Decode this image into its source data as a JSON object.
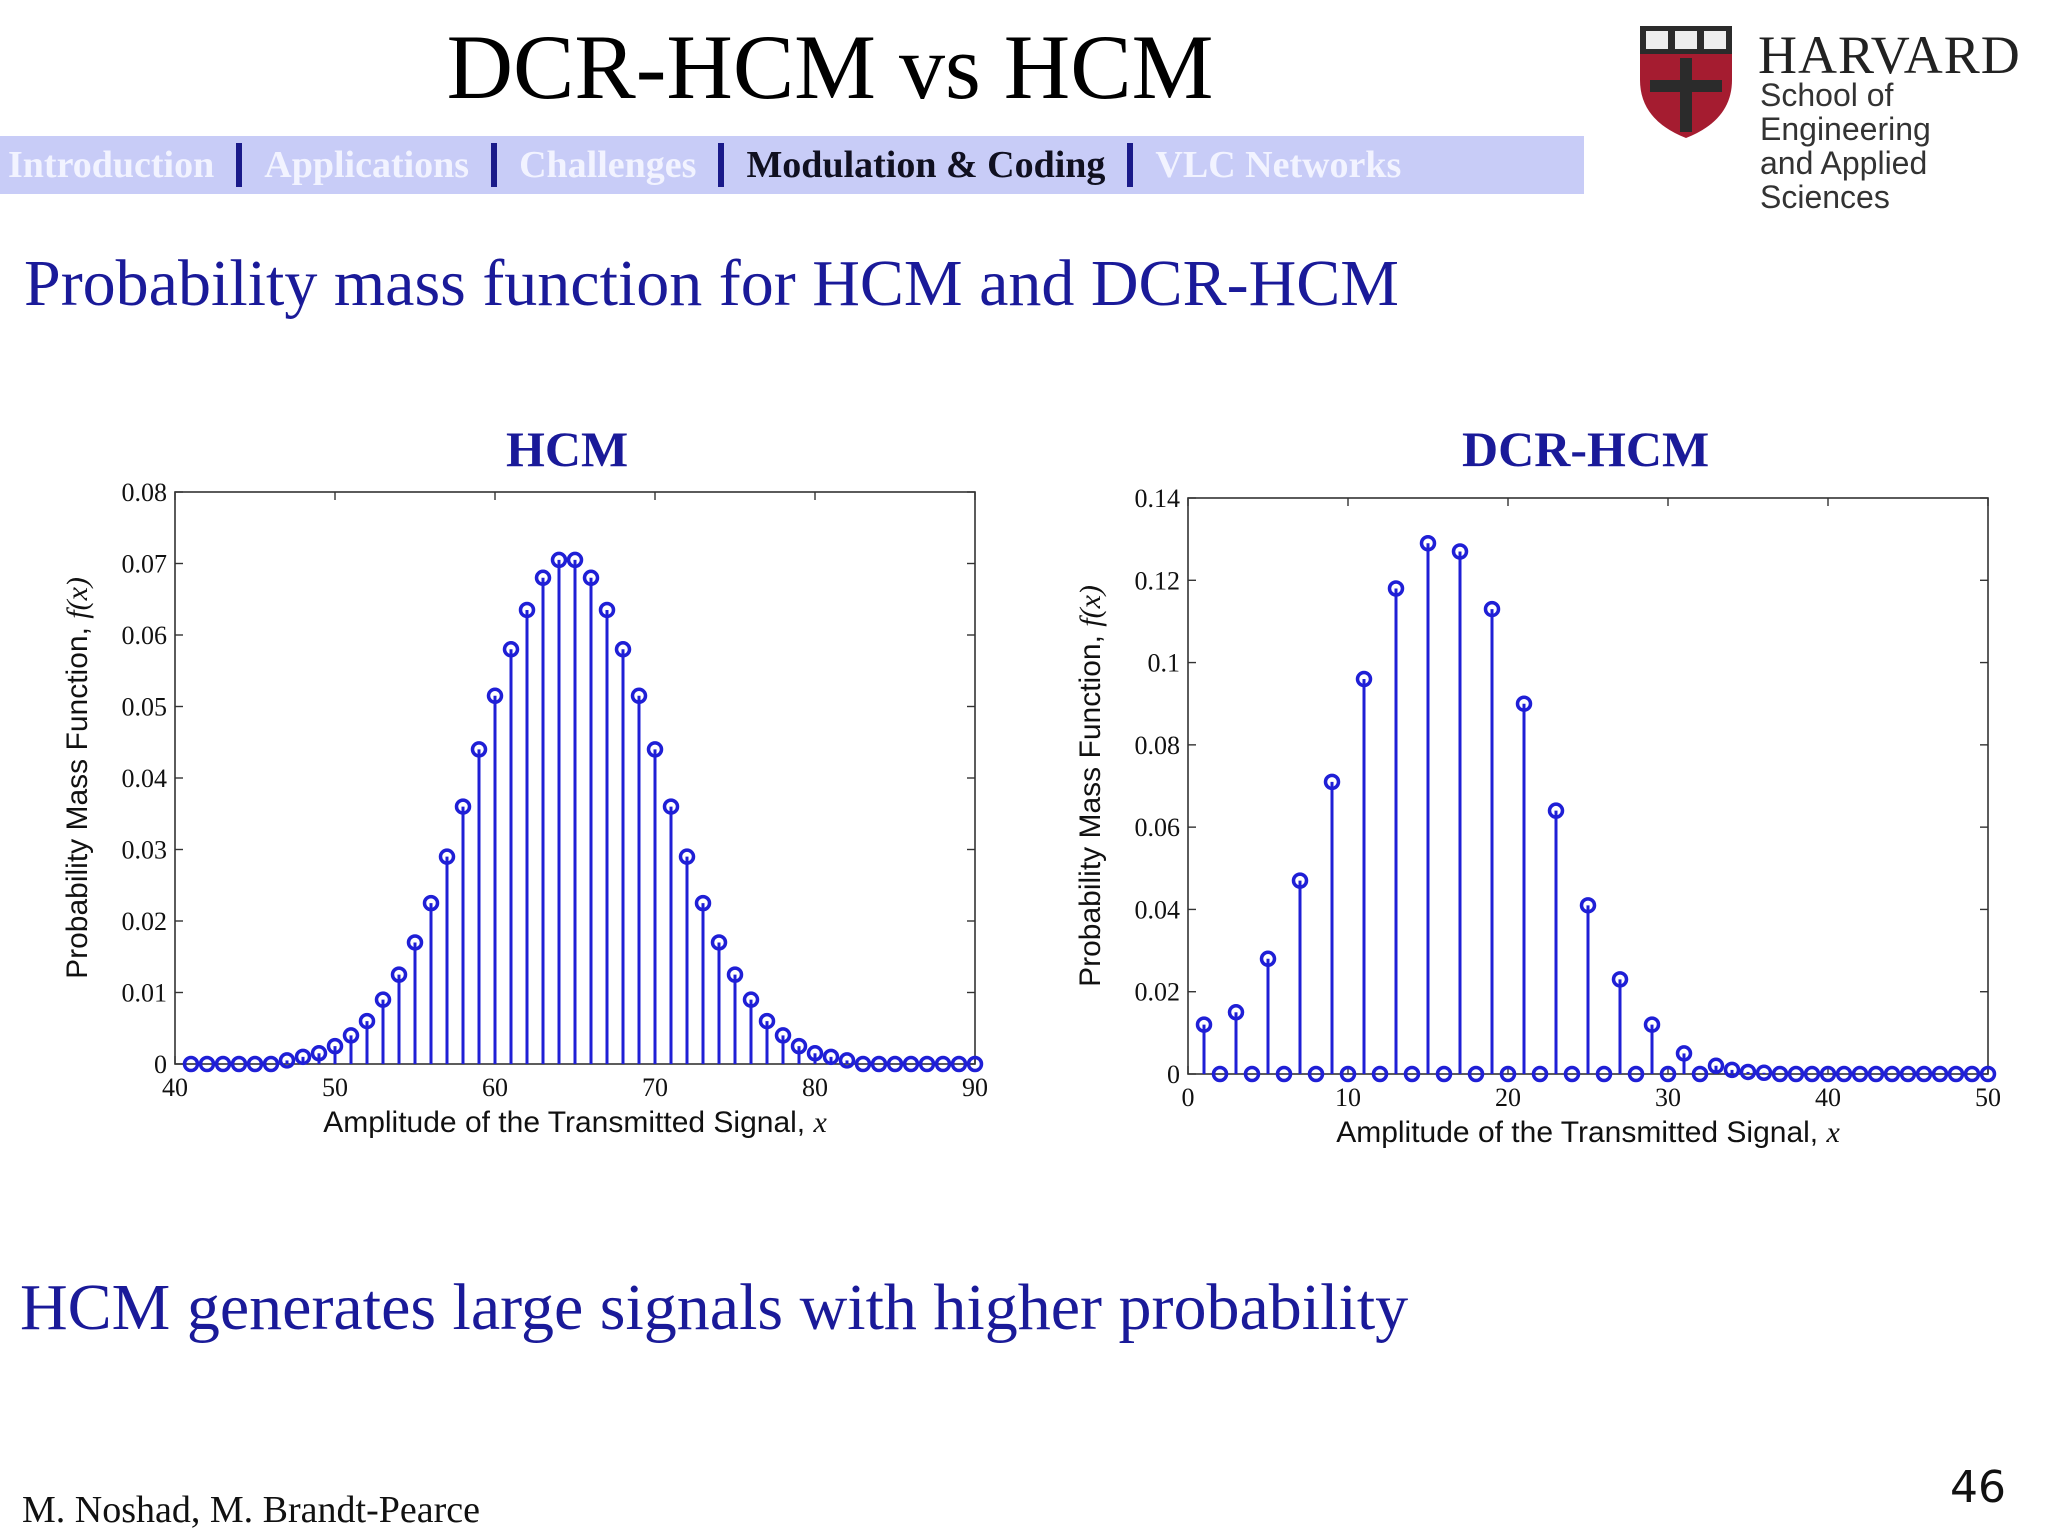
{
  "slide": {
    "title": "DCR-HCM vs HCM",
    "subtitle": "Probability mass function for HCM and DCR-HCM",
    "conclusion": "HCM generates large signals with higher probability",
    "footer": "M. Noshad, M. Brandt-Pearce",
    "page_number": "46"
  },
  "logo": {
    "name": "HARVARD",
    "line1": "School of Engineering",
    "line2": "and Applied Sciences",
    "shield_color": "#a51c30"
  },
  "nav": {
    "items": [
      "Introduction",
      "Applications",
      "Challenges",
      "Modulation & Coding",
      "VLC Networks"
    ],
    "active_index": 3
  },
  "colors": {
    "accent": "#1a1a99",
    "stem": "#1f1fd6",
    "nav_bg": "#c8ccf7"
  },
  "chart_data": [
    {
      "type": "stem",
      "title": "HCM",
      "xlabel": "Amplitude of the Transmitted Signal, x",
      "ylabel": "Probability Mass Function, f(x)",
      "xlim": [
        40,
        90
      ],
      "ylim": [
        0,
        0.08
      ],
      "xticks": [
        40,
        50,
        60,
        70,
        80,
        90
      ],
      "yticks": [
        0,
        0.01,
        0.02,
        0.03,
        0.04,
        0.05,
        0.06,
        0.07,
        0.08
      ],
      "grid": false,
      "x": [
        41,
        42,
        43,
        44,
        45,
        46,
        47,
        48,
        49,
        50,
        51,
        52,
        53,
        54,
        55,
        56,
        57,
        58,
        59,
        60,
        61,
        62,
        63,
        64,
        65,
        66,
        67,
        68,
        69,
        70,
        71,
        72,
        73,
        74,
        75,
        76,
        77,
        78,
        79,
        80,
        81,
        82,
        83,
        84,
        85,
        86,
        87,
        88,
        89,
        90
      ],
      "y": [
        0,
        0,
        0,
        0,
        0,
        0,
        0.0005,
        0.001,
        0.0015,
        0.0025,
        0.004,
        0.006,
        0.009,
        0.0125,
        0.017,
        0.0225,
        0.029,
        0.036,
        0.044,
        0.0515,
        0.058,
        0.0635,
        0.068,
        0.0705,
        0.0705,
        0.068,
        0.0635,
        0.058,
        0.0515,
        0.044,
        0.036,
        0.029,
        0.0225,
        0.017,
        0.0125,
        0.009,
        0.006,
        0.004,
        0.0025,
        0.0015,
        0.001,
        0.0005,
        0,
        0,
        0,
        0,
        0,
        0,
        0,
        0
      ]
    },
    {
      "type": "stem",
      "title": "DCR-HCM",
      "xlabel": "Amplitude of the Transmitted Signal, x",
      "ylabel": "Probability Mass Function, f(x)",
      "xlim": [
        0,
        50
      ],
      "ylim": [
        0,
        0.14
      ],
      "xticks": [
        0,
        10,
        20,
        30,
        40,
        50
      ],
      "yticks": [
        0,
        0.02,
        0.04,
        0.06,
        0.08,
        0.1,
        0.12,
        0.14
      ],
      "grid": false,
      "x": [
        1,
        2,
        3,
        4,
        5,
        6,
        7,
        8,
        9,
        10,
        11,
        12,
        13,
        14,
        15,
        16,
        17,
        18,
        19,
        20,
        21,
        22,
        23,
        24,
        25,
        26,
        27,
        28,
        29,
        30,
        31,
        32,
        33,
        34,
        35,
        36,
        37,
        38,
        39,
        40,
        41,
        42,
        43,
        44,
        45,
        46,
        47,
        48,
        49,
        50
      ],
      "y": [
        0.012,
        0,
        0.015,
        0,
        0.028,
        0,
        0.047,
        0,
        0.071,
        0,
        0.096,
        0,
        0.118,
        0,
        0.129,
        0,
        0.127,
        0,
        0.113,
        0,
        0.09,
        0,
        0.064,
        0,
        0.041,
        0,
        0.023,
        0,
        0.012,
        0,
        0.005,
        0,
        0.002,
        0.001,
        0.0005,
        0.0003,
        0,
        0,
        0,
        0,
        0,
        0,
        0,
        0,
        0,
        0,
        0,
        0,
        0,
        0
      ]
    }
  ]
}
